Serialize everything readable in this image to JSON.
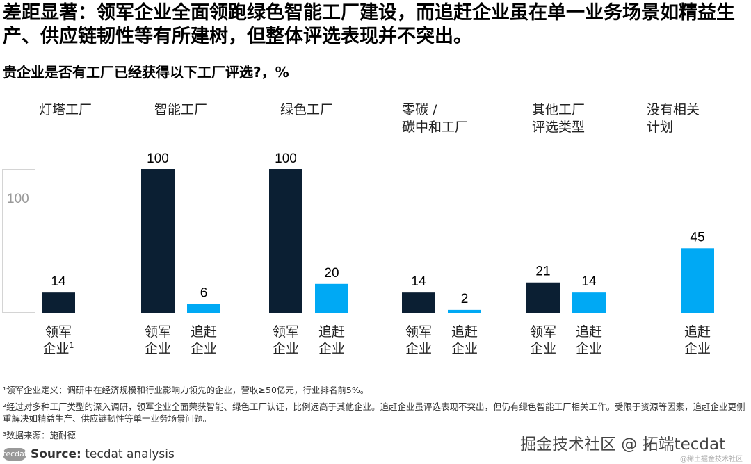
{
  "title": "差距显著：领军企业全面领跑绿色智能工厂建设，而追赶企业虽在单一业务场景如精益生产、供应链韧性等有所建树，但整体评选表现并不突出。",
  "subtitle": "贵企业是否有工厂已经获得以下工厂评选?，%",
  "chart_data": {
    "type": "bar",
    "categories": [
      "灯塔工厂",
      "智能工厂",
      "绿色工厂",
      "零碳 / 碳中和工厂",
      "其他工厂评选类型",
      "没有相关计划"
    ],
    "category_lines": [
      [
        "灯塔工厂"
      ],
      [
        "智能工厂"
      ],
      [
        "绿色工厂"
      ],
      [
        "零碳 /",
        "碳中和工厂"
      ],
      [
        "其他工厂",
        "评选类型"
      ],
      [
        "没有相关",
        "计划"
      ]
    ],
    "series": [
      {
        "name": "领军企业",
        "values": [
          14,
          100,
          100,
          14,
          21,
          null
        ],
        "color": "#0b1f33"
      },
      {
        "name": "追赶企业",
        "values": [
          null,
          6,
          20,
          2,
          14,
          45
        ],
        "color": "#00a9f4"
      }
    ],
    "series_labels": [
      [
        "领军",
        "企业"
      ],
      [
        "追赶",
        "企业"
      ]
    ],
    "first_label_footnote": "1",
    "scale_label": "100",
    "ylim": [
      0,
      100
    ]
  },
  "footnotes": [
    "¹领军企业定义：调研中在经济规模和行业影响力领先的企业，营收≥50亿元，行业排名前5%。",
    "²经过对多种工厂类型的深入调研，领军企业全面荣获智能、绿色工厂认证，比例远高于其他企业。追赶企业虽评选表现不突出，但仍有绿色智能工厂相关工作。受限于资源等因素，追赶企业更侧重解决如精益生产、供应链韧性等单一业务场景问题。",
    "³数据来源：施耐德"
  ],
  "source": {
    "logo": "tecdat",
    "label": "Source:",
    "text": " tecdat analysis"
  },
  "watermark": "掘金技术社区 @ 拓端tecdat",
  "watermark_small": "@稀土掘金技术社区"
}
